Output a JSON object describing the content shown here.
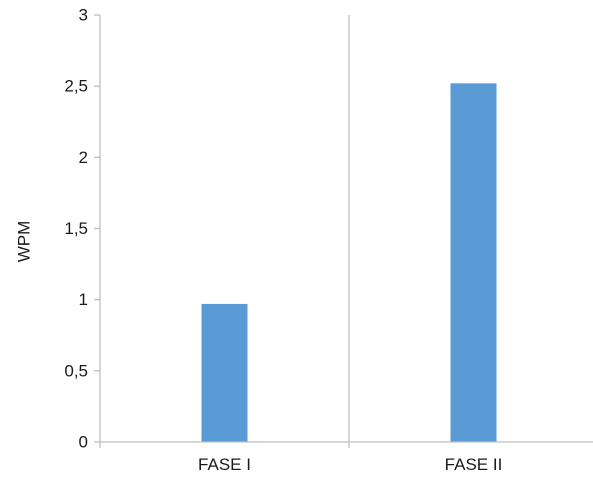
{
  "chart_data": {
    "type": "bar",
    "title": "",
    "xlabel": "",
    "ylabel": "WPM",
    "categories": [
      "FASE I",
      "FASE II"
    ],
    "values": [
      0.97,
      2.52
    ],
    "ylim": [
      0,
      3
    ],
    "yticks": [
      "0",
      "0,5",
      "1",
      "1,5",
      "2",
      "2,5",
      "3"
    ],
    "grid": false,
    "legend": "none",
    "bar_color": "#5b9bd5",
    "axis_color": "#bfbfbf"
  }
}
